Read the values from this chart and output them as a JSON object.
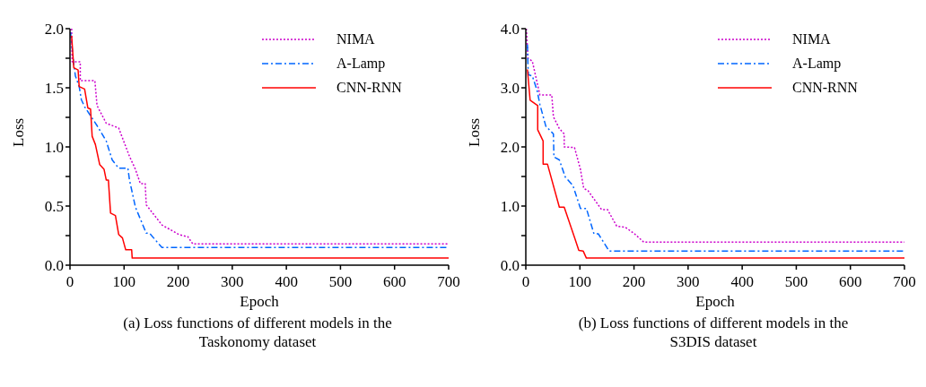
{
  "chart_data": [
    {
      "type": "line",
      "title": "(a) Loss functions of different models in the Taskonomy dataset",
      "xlabel": "Epoch",
      "ylabel": "Loss",
      "xlim": [
        0,
        700
      ],
      "xticks": [
        0,
        100,
        200,
        300,
        400,
        500,
        600,
        700
      ],
      "ylim": [
        0,
        2
      ],
      "yticks": [
        {
          "value": 0,
          "label": "0.0"
        },
        {
          "value": 0.25,
          "label": null
        },
        {
          "value": 0.5,
          "label": "0.5"
        },
        {
          "value": 0.75,
          "label": null
        },
        {
          "value": 1,
          "label": "1.0"
        },
        {
          "value": 1.25,
          "label": null
        },
        {
          "value": 1.5,
          "label": "1.5"
        },
        {
          "value": 1.75,
          "label": null
        },
        {
          "value": 2,
          "label": "2.0"
        }
      ],
      "legend": "top right",
      "marker": "none",
      "series": [
        {
          "name": "NIMA",
          "color": "#cc00cc",
          "line_style": "dotted",
          "x": [
            3,
            4,
            19,
            19,
            46,
            50,
            67,
            90,
            110,
            121,
            130,
            139,
            141,
            170,
            201,
            218,
            227,
            700
          ],
          "values": [
            2.0,
            1.72,
            1.72,
            1.56,
            1.56,
            1.35,
            1.2,
            1.16,
            0.92,
            0.81,
            0.69,
            0.69,
            0.51,
            0.34,
            0.26,
            0.24,
            0.18,
            0.18
          ]
        },
        {
          "name": "A-Lamp",
          "color": "#0066ff",
          "line_style": "dashed",
          "x": [
            1,
            7,
            10,
            17,
            21,
            27,
            50,
            67,
            78,
            90,
            107,
            110,
            121,
            141,
            147,
            170,
            700
          ],
          "values": [
            1.97,
            1.7,
            1.6,
            1.51,
            1.4,
            1.34,
            1.18,
            1.05,
            0.89,
            0.82,
            0.82,
            0.72,
            0.49,
            0.27,
            0.27,
            0.15,
            0.15
          ]
        },
        {
          "name": "CNN-RNN",
          "color": "#ff0000",
          "line_style": "solid",
          "x": [
            3,
            7,
            15,
            17,
            27,
            33,
            38,
            41,
            47,
            55,
            63,
            67,
            71,
            75,
            84,
            90,
            97,
            103,
            114,
            115,
            700
          ],
          "values": [
            1.94,
            1.67,
            1.65,
            1.51,
            1.49,
            1.33,
            1.32,
            1.09,
            1.02,
            0.85,
            0.81,
            0.72,
            0.72,
            0.44,
            0.42,
            0.26,
            0.23,
            0.13,
            0.13,
            0.06,
            0.06
          ]
        }
      ]
    },
    {
      "type": "line",
      "title": "(b) Loss functions of different models in the S3DIS dataset",
      "xlabel": "Epoch",
      "ylabel": "Loss",
      "xlim": [
        0,
        700
      ],
      "xticks": [
        0,
        100,
        200,
        300,
        400,
        500,
        600,
        700
      ],
      "ylim": [
        0,
        4
      ],
      "yticks": [
        {
          "value": 0,
          "label": "0.0"
        },
        {
          "value": 0.5,
          "label": null
        },
        {
          "value": 1,
          "label": "1.0"
        },
        {
          "value": 1.5,
          "label": null
        },
        {
          "value": 2,
          "label": "2.0"
        },
        {
          "value": 2.5,
          "label": null
        },
        {
          "value": 3,
          "label": "3.0"
        },
        {
          "value": 3.5,
          "label": null
        },
        {
          "value": 4,
          "label": "4.0"
        }
      ],
      "legend": "top right",
      "marker": "none",
      "series": [
        {
          "name": "NIMA",
          "color": "#cc00cc",
          "line_style": "dotted",
          "x": [
            1,
            4,
            12,
            26,
            48,
            51,
            62,
            71,
            71,
            90,
            101,
            107,
            115,
            140,
            151,
            168,
            184,
            201,
            218,
            700
          ],
          "values": [
            4.0,
            3.5,
            3.45,
            2.88,
            2.88,
            2.51,
            2.31,
            2.22,
            2.0,
            1.99,
            1.62,
            1.3,
            1.26,
            0.94,
            0.94,
            0.66,
            0.64,
            0.53,
            0.39,
            0.39
          ]
        },
        {
          "name": "A-Lamp",
          "color": "#0066ff",
          "line_style": "dashed",
          "x": [
            3,
            4,
            5,
            12,
            21,
            26,
            37,
            51,
            52,
            62,
            73,
            87,
            101,
            112,
            123,
            126,
            134,
            154,
            700
          ],
          "values": [
            3.73,
            3.36,
            3.22,
            3.2,
            2.95,
            2.72,
            2.35,
            2.22,
            1.83,
            1.78,
            1.49,
            1.35,
            0.96,
            0.96,
            0.62,
            0.53,
            0.53,
            0.24,
            0.24
          ]
        },
        {
          "name": "CNN-RNN",
          "color": "#ff0000",
          "line_style": "solid",
          "x": [
            3,
            8,
            22,
            22,
            32,
            32,
            40,
            62,
            71,
            90,
            98,
            106,
            112,
            700
          ],
          "values": [
            3.31,
            2.79,
            2.7,
            2.29,
            2.1,
            1.71,
            1.71,
            0.98,
            0.98,
            0.47,
            0.25,
            0.24,
            0.12,
            0.12
          ]
        }
      ]
    }
  ]
}
